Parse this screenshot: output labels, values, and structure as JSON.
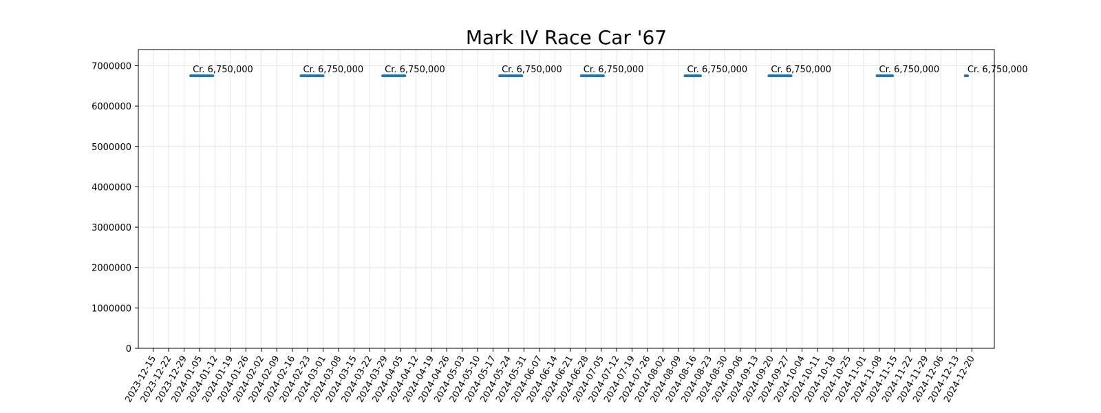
{
  "chart_data": {
    "type": "line",
    "title": "Mark IV Race Car '67",
    "xlabel": "",
    "ylabel": "",
    "ylim": [
      0,
      7400000
    ],
    "y_ticks": [
      0,
      1000000,
      2000000,
      3000000,
      4000000,
      5000000,
      6000000,
      7000000
    ],
    "x_ticks": [
      "2023-12-15",
      "2023-12-22",
      "2023-12-29",
      "2024-01-05",
      "2024-01-12",
      "2024-01-19",
      "2024-01-26",
      "2024-02-02",
      "2024-02-09",
      "2024-02-16",
      "2024-02-23",
      "2024-03-01",
      "2024-03-08",
      "2024-03-15",
      "2024-03-22",
      "2024-03-29",
      "2024-04-05",
      "2024-04-12",
      "2024-04-19",
      "2024-04-26",
      "2024-05-03",
      "2024-05-10",
      "2024-05-17",
      "2024-05-24",
      "2024-05-31",
      "2024-06-07",
      "2024-06-14",
      "2024-06-21",
      "2024-06-28",
      "2024-07-05",
      "2024-07-12",
      "2024-07-19",
      "2024-07-26",
      "2024-08-02",
      "2024-08-09",
      "2024-08-16",
      "2024-08-23",
      "2024-08-30",
      "2024-09-06",
      "2024-09-13",
      "2024-09-20",
      "2024-09-27",
      "2024-10-04",
      "2024-10-11",
      "2024-10-18",
      "2024-10-25",
      "2024-11-01",
      "2024-11-08",
      "2024-11-15",
      "2024-11-22",
      "2024-11-29",
      "2024-12-06",
      "2024-12-13",
      "2024-12-20"
    ],
    "grid": true,
    "legend": "none",
    "series_color": "#1f77b4",
    "series": [
      {
        "segments": [
          {
            "start": "2024-01-01",
            "end": "2024-01-11",
            "value": 6750000,
            "label": "Cr. 6,750,000"
          },
          {
            "start": "2024-02-20",
            "end": "2024-03-01",
            "value": 6750000,
            "label": "Cr. 6,750,000"
          },
          {
            "start": "2024-03-28",
            "end": "2024-04-07",
            "value": 6750000,
            "label": "Cr. 6,750,000"
          },
          {
            "start": "2024-05-20",
            "end": "2024-05-30",
            "value": 6750000,
            "label": "Cr. 6,750,000"
          },
          {
            "start": "2024-06-26",
            "end": "2024-07-06",
            "value": 6750000,
            "label": "Cr. 6,750,000"
          },
          {
            "start": "2024-08-12",
            "end": "2024-08-19",
            "value": 6750000,
            "label": "Cr. 6,750,000"
          },
          {
            "start": "2024-09-19",
            "end": "2024-09-29",
            "value": 6750000,
            "label": "Cr. 6,750,000"
          },
          {
            "start": "2024-11-07",
            "end": "2024-11-14",
            "value": 6750000,
            "label": "Cr. 6,750,000"
          },
          {
            "start": "2024-12-17",
            "end": "2024-12-18",
            "value": 6750000,
            "label": "Cr. 6,750,000"
          }
        ]
      }
    ]
  }
}
